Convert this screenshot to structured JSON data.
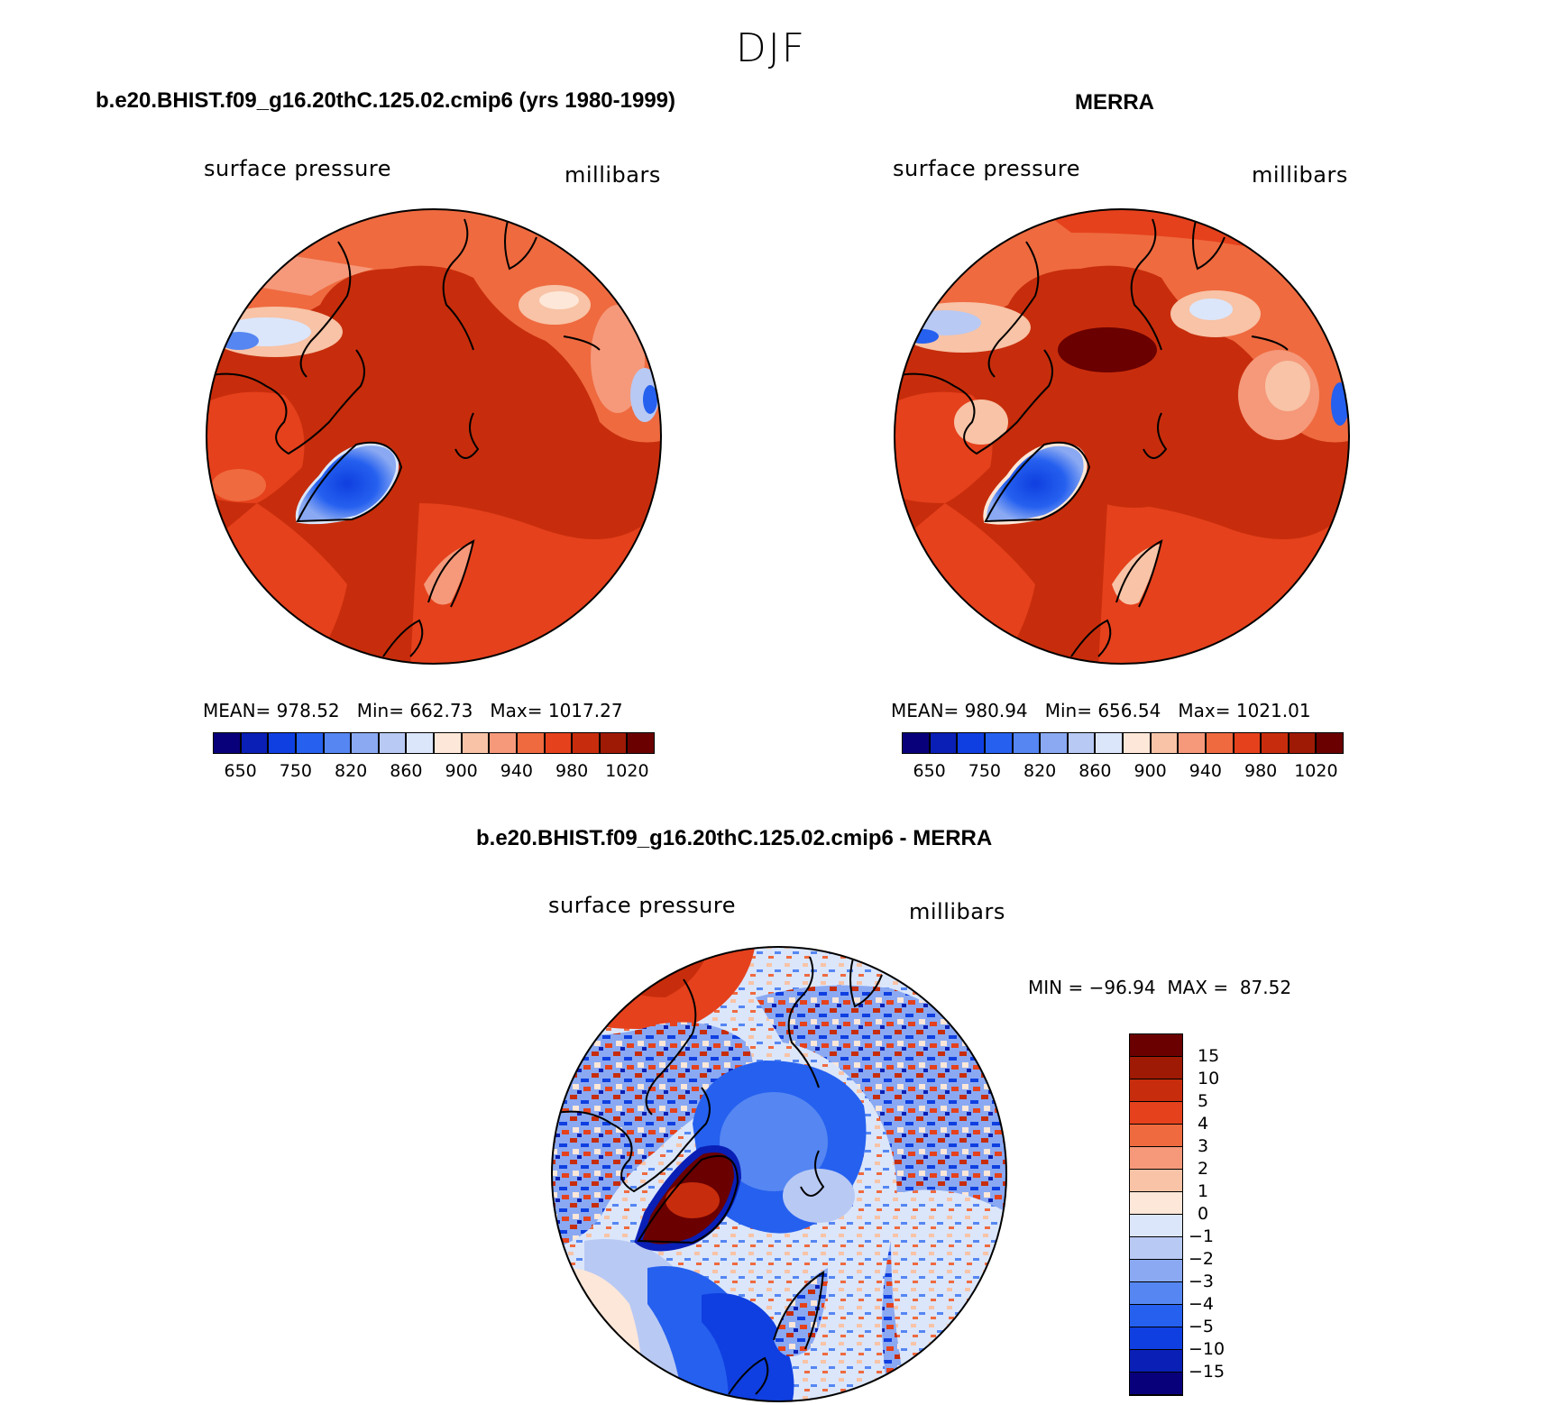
{
  "figure": {
    "title": "DJF",
    "palette_abs": [
      "#08007a",
      "#0a1fb5",
      "#0f3fe0",
      "#2560ef",
      "#5586f2",
      "#8aa9f2",
      "#b8c9f4",
      "#dbe6fb",
      "#fde7d8",
      "#f8c3a6",
      "#f5997a",
      "#ef6a3f",
      "#e5411c",
      "#c72d0c",
      "#9e1a05",
      "#6a0000"
    ],
    "palette_diff": [
      "#08007a",
      "#0a1fb5",
      "#0f3fe0",
      "#2560ef",
      "#5586f2",
      "#8aa9f2",
      "#b8c9f4",
      "#dbe6fb",
      "#fde7d8",
      "#f8c3a6",
      "#f5997a",
      "#ef6a3f",
      "#e5411c",
      "#c72d0c",
      "#9e1a05",
      "#6a0000"
    ]
  },
  "chart_data": [
    {
      "type": "heatmap",
      "projection": "north-polar-stereographic",
      "title": "b.e20.BHIST.f09_g16.20thC.125.02.cmip6 (yrs 1980-1999)",
      "variable": "surface pressure",
      "units": "millibars",
      "stats": {
        "mean_label": "MEAN=",
        "mean": "978.52",
        "min_label": "Min=",
        "min": "662.73",
        "max_label": "Max=",
        "max": "1017.27"
      },
      "colorbar": {
        "orientation": "horizontal",
        "labels": [
          "650",
          "750",
          "820",
          "860",
          "900",
          "940",
          "980",
          "1020"
        ]
      }
    },
    {
      "type": "heatmap",
      "projection": "north-polar-stereographic",
      "title": "MERRA",
      "variable": "surface pressure",
      "units": "millibars",
      "stats": {
        "mean_label": "MEAN=",
        "mean": "980.94",
        "min_label": "Min=",
        "min": "656.54",
        "max_label": "Max=",
        "max": "1021.01"
      },
      "colorbar": {
        "orientation": "horizontal",
        "labels": [
          "650",
          "750",
          "820",
          "860",
          "900",
          "940",
          "980",
          "1020"
        ]
      }
    },
    {
      "type": "heatmap",
      "projection": "north-polar-stereographic",
      "title": "b.e20.BHIST.f09_g16.20thC.125.02.cmip6 - MERRA",
      "variable": "surface pressure",
      "units": "millibars",
      "stats": {
        "min_label": "MIN =",
        "min": "−96.94",
        "max_label": "MAX =",
        "max": "87.52"
      },
      "colorbar": {
        "orientation": "vertical",
        "labels": [
          "15",
          "10",
          "5",
          "4",
          "3",
          "2",
          "1",
          "0",
          "−1",
          "−2",
          "−3",
          "−4",
          "−5",
          "−10",
          "−15"
        ]
      }
    }
  ]
}
